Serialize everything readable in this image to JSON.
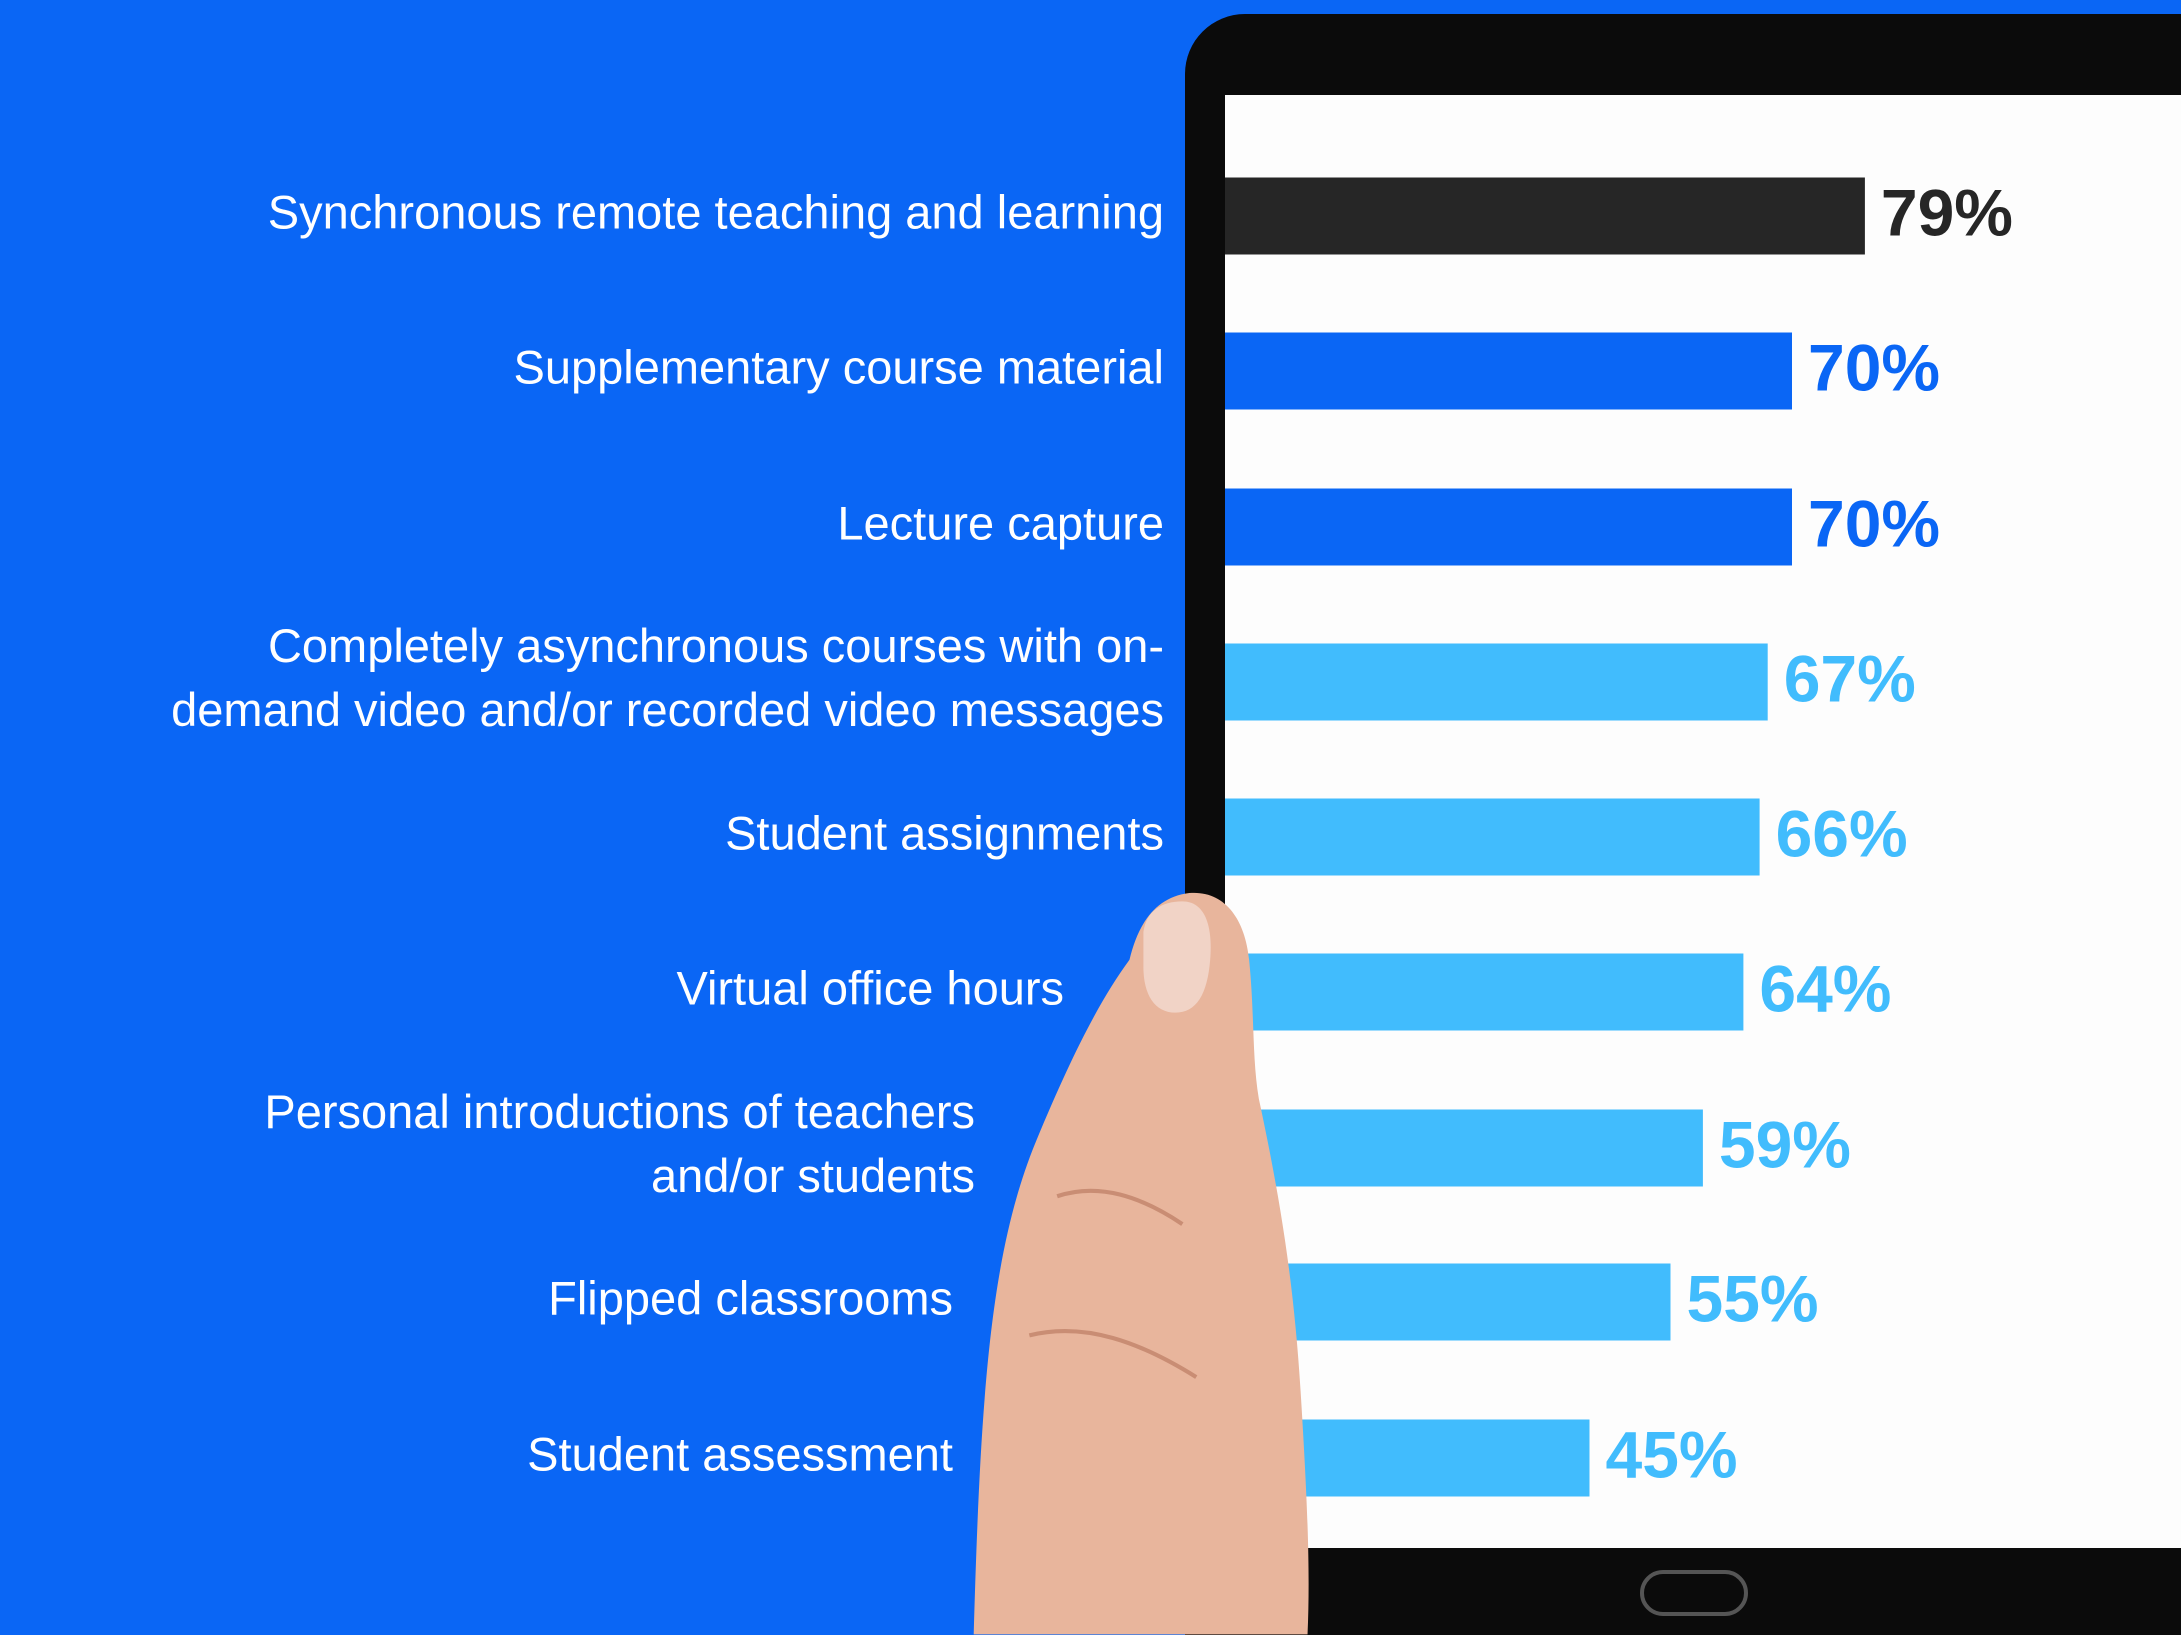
{
  "chart_data": {
    "type": "hbar",
    "categories": [
      "Synchronous remote teaching and learning",
      "Supplementary course material",
      "Lecture capture",
      "Completely asynchronous courses with on-\ndemand video and/or recorded video messages",
      "Student assignments",
      "Virtual office hours",
      "Personal introductions of teachers\nand/or students",
      "Flipped classrooms",
      "Student assessment"
    ],
    "values": [
      79,
      70,
      70,
      67,
      66,
      64,
      59,
      55,
      45
    ],
    "value_labels": [
      "79%",
      "70%",
      "70%",
      "67%",
      "66%",
      "64%",
      "59%",
      "55%",
      "45%"
    ],
    "colors": [
      "#262626",
      "#0a66f5",
      "#0a66f5",
      "#41bcfd",
      "#41bcfd",
      "#41bcfd",
      "#41bcfd",
      "#41bcfd",
      "#41bcfd"
    ]
  }
}
